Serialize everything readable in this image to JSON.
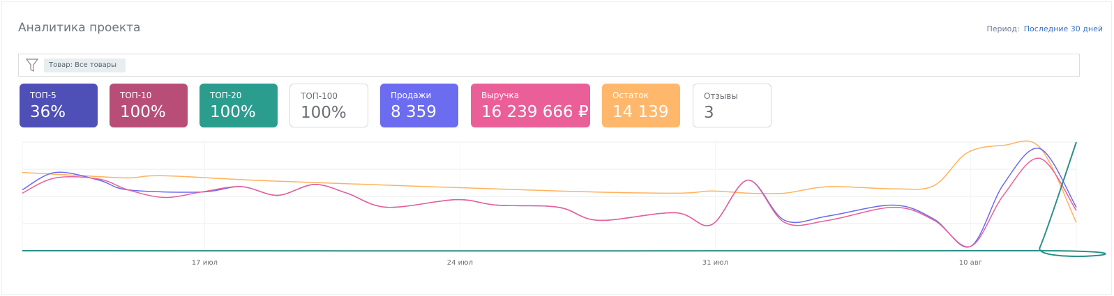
{
  "header": {
    "title": "Аналитика проекта",
    "period_label": "Период:",
    "period_value": "Последние 30 дней"
  },
  "filter": {
    "icon": "filter-icon",
    "chip": "Товар: Все товары"
  },
  "cards": [
    {
      "label": "ТОП-5",
      "value": "36%",
      "color": "#4f4fb8"
    },
    {
      "label": "ТОП-10",
      "value": "100%",
      "color": "#b84e78"
    },
    {
      "label": "ТОП-20",
      "value": "100%",
      "color": "#2a9d8f"
    },
    {
      "label": "ТОП-100",
      "value": "100%",
      "color": "#ffffff"
    },
    {
      "label": "Продажи",
      "value": "8 359",
      "color": "#6c6cf0"
    },
    {
      "label": "Выручка",
      "value": "16 239 666 ₽",
      "color": "#ea5f98"
    },
    {
      "label": "Остаток",
      "value": "14 139",
      "color": "#ffb86b"
    },
    {
      "label": "Отзывы",
      "value": "3",
      "color": "#ffffff"
    }
  ],
  "chart_data": {
    "type": "line",
    "xlim": [
      0,
      28.9
    ],
    "ylim": [
      0,
      100
    ],
    "grid": true,
    "ticks": [
      {
        "x": 5,
        "label": "17 июл"
      },
      {
        "x": 12,
        "label": "24 июл"
      },
      {
        "x": 19,
        "label": "31 июл"
      },
      {
        "x": 26,
        "label": "10 авг"
      }
    ],
    "series": [
      {
        "name": "Остаток",
        "color": "#ffb25c",
        "points": [
          [
            0,
            72
          ],
          [
            1.7,
            69
          ],
          [
            2.9,
            67
          ],
          [
            3.9,
            69
          ],
          [
            7,
            64
          ],
          [
            14.7,
            55
          ],
          [
            17.9,
            53
          ],
          [
            18.9,
            55
          ],
          [
            19.9,
            53
          ],
          [
            20.9,
            53
          ],
          [
            22.1,
            59
          ],
          [
            23.9,
            57
          ],
          [
            25,
            60
          ],
          [
            25.9,
            90
          ],
          [
            26.9,
            97
          ],
          [
            27.9,
            95
          ],
          [
            28.9,
            26
          ]
        ]
      },
      {
        "name": "Продажи",
        "color": "#6a6af0",
        "points": [
          [
            0,
            56
          ],
          [
            0.9,
            72
          ],
          [
            2.1,
            65
          ],
          [
            2.9,
            56
          ],
          [
            4.9,
            54
          ],
          [
            6,
            59
          ],
          [
            7,
            51
          ],
          [
            8,
            61
          ],
          [
            8.9,
            53
          ],
          [
            10,
            40
          ],
          [
            11.9,
            47
          ],
          [
            13,
            42
          ],
          [
            14.7,
            40
          ],
          [
            15.8,
            28
          ],
          [
            17.9,
            35
          ],
          [
            18.9,
            24
          ],
          [
            19.9,
            65
          ],
          [
            20.9,
            28
          ],
          [
            22.1,
            32
          ],
          [
            23.9,
            42
          ],
          [
            25,
            29
          ],
          [
            26,
            4
          ],
          [
            26.9,
            61
          ],
          [
            27.9,
            94
          ],
          [
            28.9,
            40
          ]
        ]
      },
      {
        "name": "Выручка",
        "color": "#ea5f98",
        "points": [
          [
            0,
            53
          ],
          [
            0.9,
            67
          ],
          [
            2.1,
            66
          ],
          [
            2.9,
            56
          ],
          [
            3.9,
            49
          ],
          [
            4.9,
            54
          ],
          [
            6,
            59
          ],
          [
            7,
            51
          ],
          [
            8,
            61
          ],
          [
            8.9,
            53
          ],
          [
            10,
            40
          ],
          [
            11.9,
            47
          ],
          [
            13,
            42
          ],
          [
            14.7,
            40
          ],
          [
            15.8,
            28
          ],
          [
            17.9,
            35
          ],
          [
            18.9,
            24
          ],
          [
            19.9,
            65
          ],
          [
            20.9,
            26
          ],
          [
            22.1,
            28
          ],
          [
            23.9,
            40
          ],
          [
            25,
            28
          ],
          [
            26,
            4
          ],
          [
            26.9,
            51
          ],
          [
            27.9,
            85
          ],
          [
            28.9,
            37
          ]
        ]
      },
      {
        "name": "ТОП-20",
        "color": "#2a8f8a",
        "points": [
          [
            0,
            0
          ],
          [
            27.6,
            0
          ],
          [
            27.9,
            3
          ],
          [
            28.9,
            100
          ]
        ]
      }
    ]
  }
}
